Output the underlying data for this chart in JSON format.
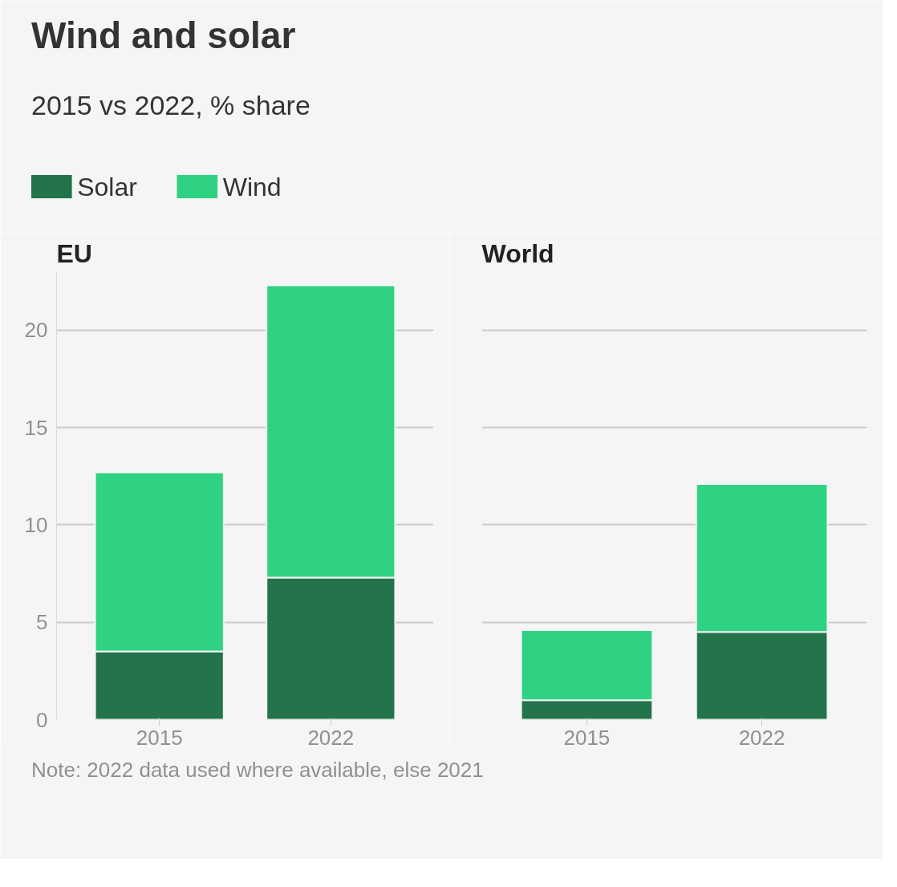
{
  "chart_data": [
    {
      "type": "other",
      "title": "Wind and solar",
      "subtitle": "2015 vs 2022, % share",
      "annotations": [
        "Note: 2022 data used where available, else 2021"
      ]
    },
    {
      "type": "bar",
      "title": "EU",
      "categories": [
        "2015",
        "2022"
      ],
      "stacked": true,
      "legend": "top left",
      "grid": "y",
      "ylim": [
        0,
        23
      ],
      "yticks": [
        0,
        5,
        10,
        15,
        20
      ],
      "series": [
        {
          "name": "Solar",
          "color": "#23734b",
          "values": [
            3.5,
            7.3
          ]
        },
        {
          "name": "Wind",
          "color": "#2ed282",
          "values": [
            9.2,
            15.0
          ]
        }
      ]
    },
    {
      "type": "bar",
      "title": "World",
      "categories": [
        "2015",
        "2022"
      ],
      "stacked": true,
      "grid": "y",
      "ylim": [
        0,
        23
      ],
      "yticks": [
        0,
        5,
        10,
        15,
        20
      ],
      "tick_labels": "x",
      "series": [
        {
          "color": "#23734b",
          "values": [
            1.0,
            4.5
          ]
        },
        {
          "color": "#2ed282",
          "values": [
            3.6,
            7.6
          ]
        }
      ]
    }
  ]
}
